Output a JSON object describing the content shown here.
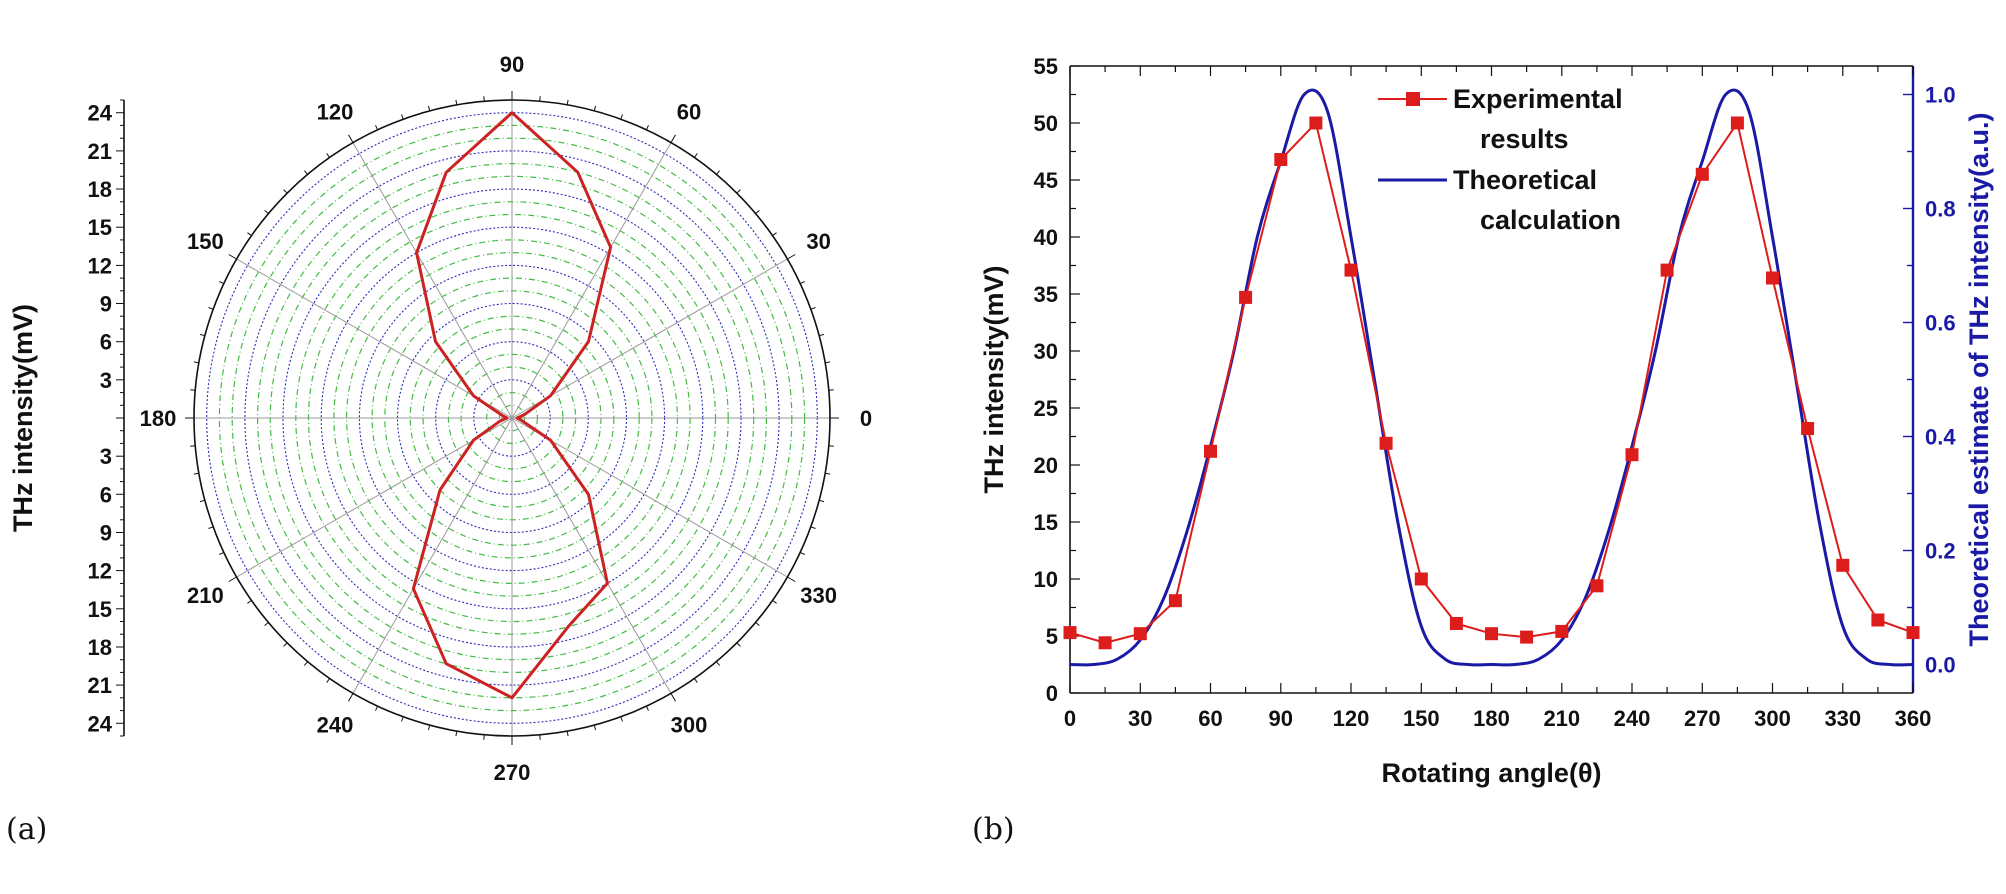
{
  "panel_labels": [
    "(a)",
    "(b)"
  ],
  "chart_data": [
    {
      "type": "polar-line",
      "radial_axis_label": "THz intensity(mV)",
      "radial_ticks": [
        3,
        6,
        9,
        12,
        15,
        18,
        21,
        24
      ],
      "radial_range": [
        0,
        25
      ],
      "angle_labels": [
        "0",
        "30",
        "60",
        "90",
        "120",
        "150",
        "180",
        "210",
        "240",
        "270",
        "300",
        "330"
      ],
      "grid": true,
      "series": [
        {
          "color": "#cc2222",
          "angles_deg": [
            0,
            15,
            30,
            45,
            60,
            75,
            90,
            105,
            120,
            135,
            150,
            165,
            180,
            195,
            210,
            225,
            240,
            255,
            270,
            285,
            300,
            315,
            330,
            345
          ],
          "values": [
            0.4,
            1.0,
            3.5,
            8.5,
            15.5,
            20.0,
            24.0,
            20.0,
            15.0,
            8.5,
            3.5,
            0.8,
            0.4,
            1.0,
            3.5,
            8.0,
            15.5,
            20.0,
            22.0,
            17.0,
            15.0,
            8.5,
            3.5,
            0.8
          ]
        }
      ]
    },
    {
      "type": "line",
      "xlabel": "Rotating angle(θ)",
      "ylabel": "THz intensity(mV)",
      "y2label": "Theoretical estimate of THz intensity(a.u.)",
      "xlim": [
        0,
        360
      ],
      "ylim": [
        0,
        55
      ],
      "y2lim": [
        -0.05,
        1.05
      ],
      "x_ticks": [
        0,
        30,
        60,
        90,
        120,
        150,
        180,
        210,
        240,
        270,
        300,
        330,
        360
      ],
      "y_ticks": [
        0,
        5,
        10,
        15,
        20,
        25,
        30,
        35,
        40,
        45,
        50,
        55
      ],
      "y2_ticks": [
        "0.0",
        "0.2",
        "0.4",
        "0.6",
        "0.8",
        "1.0"
      ],
      "legend_position": "top-center",
      "series": [
        {
          "name": "Experimental results",
          "axis": "left",
          "color": "#dd1c1c",
          "marker": "square",
          "x": [
            0,
            15,
            30,
            45,
            60,
            75,
            90,
            105,
            120,
            135,
            150,
            165,
            180,
            195,
            210,
            225,
            240,
            255,
            270,
            285,
            300,
            315,
            330,
            345,
            360
          ],
          "y": [
            5.3,
            4.4,
            5.2,
            8.1,
            21.2,
            34.7,
            46.8,
            50.0,
            37.1,
            21.9,
            10.0,
            6.1,
            5.2,
            4.9,
            5.4,
            9.4,
            20.9,
            37.1,
            45.5,
            50.0,
            36.4,
            23.2,
            11.2,
            6.4,
            5.3
          ]
        },
        {
          "name": "Theoretical calculation",
          "axis": "right",
          "color": "#1a1aa6",
          "marker": "none",
          "x": [
            0,
            10,
            20,
            30,
            40,
            50,
            60,
            70,
            80,
            90,
            100,
            110,
            120,
            130,
            140,
            150,
            160,
            170,
            180,
            190,
            200,
            210,
            220,
            230,
            240,
            250,
            260,
            270,
            280,
            290,
            300,
            310,
            320,
            330,
            340,
            350,
            360
          ],
          "y": [
            0.0,
            0.0,
            0.009,
            0.043,
            0.116,
            0.234,
            0.383,
            0.55,
            0.75,
            0.883,
            1.0,
            0.97,
            0.75,
            0.5,
            0.25,
            0.067,
            0.01,
            0.0,
            0.0,
            0.0,
            0.009,
            0.043,
            0.116,
            0.234,
            0.383,
            0.55,
            0.75,
            0.883,
            1.0,
            0.97,
            0.75,
            0.5,
            0.25,
            0.067,
            0.01,
            0.0,
            0.0
          ]
        }
      ]
    }
  ]
}
